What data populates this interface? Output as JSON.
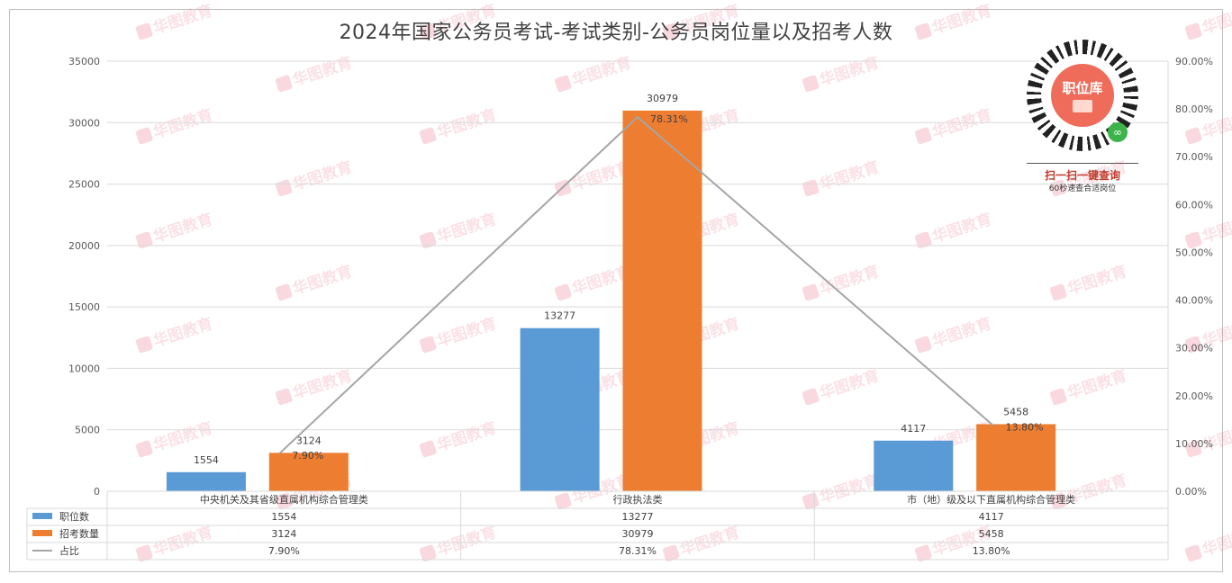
{
  "chart_data": {
    "type": "bar",
    "title": "2024年国家公务员考试-考试类别-公务员岗位量以及招考人数",
    "categories": [
      "中央机关及其省级直属机构综合管理类",
      "行政执法类",
      "市（地）级及以下直属机构综合管理类"
    ],
    "series": [
      {
        "name": "职位数",
        "type": "bar",
        "axis": "left",
        "color": "#5b9bd5",
        "values": [
          1554,
          13277,
          4117
        ]
      },
      {
        "name": "招考数量",
        "type": "bar",
        "axis": "left",
        "color": "#ed7d31",
        "values": [
          3124,
          30979,
          5458
        ]
      },
      {
        "name": "占比",
        "type": "line",
        "axis": "right",
        "color": "#a5a5a5",
        "values": [
          7.9,
          78.31,
          13.8
        ]
      }
    ],
    "line_labels": [
      "7.90%",
      "78.31%",
      "13.80%"
    ],
    "y_left": {
      "min": 0,
      "max": 35000,
      "step": 5000,
      "ticks": [
        "0",
        "5000",
        "10000",
        "15000",
        "20000",
        "25000",
        "30000",
        "35000"
      ]
    },
    "y_right": {
      "min": 0,
      "max": 90,
      "step": 10,
      "ticks": [
        "0.00%",
        "10.00%",
        "20.00%",
        "30.00%",
        "40.00%",
        "50.00%",
        "60.00%",
        "70.00%",
        "80.00%",
        "90.00%"
      ]
    },
    "grid": true,
    "legend": "data-table-bottom",
    "table_rows": [
      {
        "name": "职位数",
        "cells": [
          "1554",
          "13277",
          "4117"
        ]
      },
      {
        "name": "招考数量",
        "cells": [
          "3124",
          "30979",
          "5458"
        ]
      },
      {
        "name": "占比",
        "cells": [
          "7.90%",
          "78.31%",
          "13.80%"
        ]
      }
    ]
  },
  "watermark": {
    "text": "华图教育",
    "color": "#e8788c"
  },
  "qr_panel": {
    "logo_text": "职位库",
    "title": "扫一扫一键查询",
    "subtitle": "60秒速查合适岗位",
    "icon": "mini-program-icon"
  }
}
